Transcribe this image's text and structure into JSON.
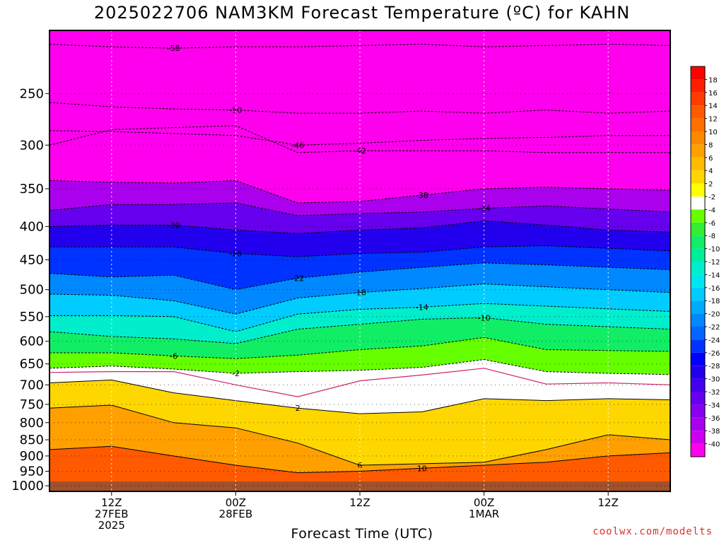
{
  "title": "2025022706 NAM3KM Forecast Temperature (ºC) for KAHN",
  "x_axis_title": "Forecast Time (UTC)",
  "credit": "coolwx.com/modelts",
  "chart_data": {
    "type": "heatmap",
    "title": "2025022706 NAM3KM Forecast Temperature (ºC) for KAHN",
    "xlabel": "Forecast Time (UTC)",
    "ylabel": "",
    "y_scale": "log (pressure, hPa), inverted",
    "y_ticks": [
      250,
      300,
      350,
      400,
      450,
      500,
      550,
      600,
      650,
      700,
      750,
      800,
      850,
      900,
      950,
      1000
    ],
    "x_ticks": [
      {
        "time": "2025-02-27T12",
        "lines": [
          "12Z",
          "27FEB",
          "2025"
        ]
      },
      {
        "time": "2025-02-28T00",
        "lines": [
          "00Z",
          "28FEB"
        ]
      },
      {
        "time": "2025-02-28T12",
        "lines": [
          "12Z"
        ]
      },
      {
        "time": "2025-03-01T00",
        "lines": [
          "00Z",
          "1MAR"
        ]
      },
      {
        "time": "2025-03-01T12",
        "lines": [
          "12Z"
        ]
      }
    ],
    "xlim": [
      "2025-02-27T06",
      "2025-03-01T18"
    ],
    "ylim": [
      1020,
      200
    ],
    "surface_level": 985,
    "grid": true,
    "colorbar": {
      "position": "right",
      "labels": [
        18,
        16,
        14,
        12,
        10,
        8,
        6,
        4,
        2,
        -2,
        -4,
        -6,
        -8,
        -10,
        -12,
        -14,
        -16,
        -18,
        -20,
        -22,
        -24,
        -26,
        -28,
        -30,
        -32,
        -34,
        -36,
        -38,
        -40
      ],
      "colors": [
        "#ff1e00",
        "#ff3c00",
        "#ff5a00",
        "#ff7000",
        "#ff8800",
        "#ffa000",
        "#ffbb00",
        "#ffd700",
        "#ffff00",
        "#ffffff",
        "#66ff00",
        "#33ee33",
        "#11ee66",
        "#00ee99",
        "#00eecc",
        "#00e6ee",
        "#00ccff",
        "#00aaff",
        "#0088ff",
        "#0066ff",
        "#0033ff",
        "#0000ff",
        "#2200ee",
        "#4400ee",
        "#6600ee",
        "#8800ee",
        "#aa00ee",
        "#cc00ee",
        "#ff00ee"
      ]
    },
    "times": [
      "2025-02-27T06",
      "2025-02-27T12",
      "2025-02-27T18",
      "2025-02-28T00",
      "2025-02-28T06",
      "2025-02-28T12",
      "2025-02-28T18",
      "2025-03-01T00",
      "2025-03-01T06",
      "2025-03-01T12",
      "2025-03-01T18"
    ],
    "contour_levels": [
      {
        "level": -58,
        "pressure": [
          210,
          212,
          213,
          212,
          212,
          211,
          210,
          212,
          211,
          210,
          211
        ]
      },
      {
        "level": -50,
        "pressure": [
          258,
          262,
          264,
          265,
          268,
          268,
          266,
          268,
          265,
          268,
          266
        ]
      },
      {
        "level": -46,
        "pressure": [
          285,
          286,
          288,
          290,
          300,
          298,
          295,
          293,
          292,
          290,
          290
        ]
      },
      {
        "level": -42,
        "pressure": [
          300,
          284,
          282,
          280,
          308,
          306,
          306,
          306,
          308,
          308,
          308
        ]
      },
      {
        "level": -38,
        "pressure": [
          340,
          342,
          343,
          340,
          368,
          366,
          358,
          350,
          348,
          350,
          352
        ]
      },
      {
        "level": -34,
        "pressure": [
          378,
          370,
          370,
          368,
          385,
          382,
          380,
          375,
          372,
          376,
          380
        ]
      },
      {
        "level": -30,
        "pressure": [
          400,
          398,
          398,
          405,
          410,
          405,
          402,
          392,
          398,
          405,
          408
        ]
      },
      {
        "level": -26,
        "pressure": [
          430,
          430,
          430,
          440,
          445,
          440,
          438,
          430,
          428,
          432,
          436
        ]
      },
      {
        "level": -22,
        "pressure": [
          472,
          478,
          475,
          500,
          480,
          470,
          462,
          455,
          458,
          462,
          466
        ]
      },
      {
        "level": -18,
        "pressure": [
          508,
          510,
          520,
          545,
          515,
          505,
          498,
          490,
          495,
          500,
          505
        ]
      },
      {
        "level": -14,
        "pressure": [
          548,
          548,
          550,
          580,
          545,
          536,
          532,
          525,
          530,
          535,
          540
        ]
      },
      {
        "level": -10,
        "pressure": [
          580,
          590,
          595,
          605,
          575,
          565,
          555,
          552,
          565,
          570,
          575
        ]
      },
      {
        "level": -6,
        "pressure": [
          625,
          625,
          632,
          638,
          630,
          618,
          610,
          592,
          618,
          620,
          622
        ]
      },
      {
        "level": -2,
        "pressure": [
          660,
          655,
          662,
          672,
          668,
          665,
          658,
          640,
          668,
          672,
          675
        ]
      },
      {
        "level": 2,
        "pressure": [
          695,
          688,
          720,
          740,
          760,
          775,
          770,
          735,
          740,
          735,
          738
        ]
      },
      {
        "level": 6,
        "pressure": [
          760,
          752,
          800,
          815,
          860,
          930,
          925,
          920,
          880,
          835,
          850
        ]
      },
      {
        "level": 10,
        "pressure": [
          880,
          870,
          900,
          930,
          955,
          950,
          940,
          930,
          920,
          900,
          890
        ]
      }
    ],
    "contour_labels": [
      "-58",
      "-50",
      "-46",
      "-42",
      "-38",
      "-34",
      "-30",
      "-26",
      "-22",
      "-18",
      "-14",
      "-10",
      "-6",
      "2",
      "6",
      "10"
    ]
  }
}
